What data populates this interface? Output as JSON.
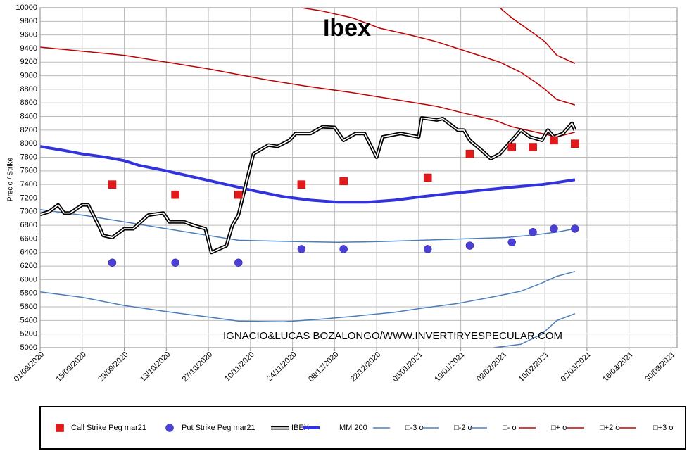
{
  "chart_data": {
    "type": "line",
    "title": "Ibex",
    "y_label": "Precio / Strike",
    "watermark": "IGNACIO&LUCAS BOZALONGO/WWW.INVERTIRYESPECULAR.COM",
    "grid": true,
    "legend": "bottom",
    "xlim": [
      "2020-09-01",
      "2021-04-01"
    ],
    "ylim": [
      5000,
      10000
    ],
    "xticks": [
      {
        "value": "2020-09-01",
        "label": "01/09/2020"
      },
      {
        "value": "2020-09-15",
        "label": "15/09/2020"
      },
      {
        "value": "2020-09-29",
        "label": "29/09/2020"
      },
      {
        "value": "2020-10-13",
        "label": "13/10/2020"
      },
      {
        "value": "2020-10-27",
        "label": "27/10/2020"
      },
      {
        "value": "2020-11-10",
        "label": "10/11/2020"
      },
      {
        "value": "2020-11-24",
        "label": "24/11/2020"
      },
      {
        "value": "2020-12-08",
        "label": "08/12/2020"
      },
      {
        "value": "2020-12-22",
        "label": "22/12/2020"
      },
      {
        "value": "2021-01-05",
        "label": "05/01/2021"
      },
      {
        "value": "2021-01-19",
        "label": "19/01/2021"
      },
      {
        "value": "2021-02-02",
        "label": "02/02/2021"
      },
      {
        "value": "2021-02-16",
        "label": "16/02/2021"
      },
      {
        "value": "2021-03-02",
        "label": "02/03/2021"
      },
      {
        "value": "2021-03-16",
        "label": "16/03/2021"
      },
      {
        "value": "2021-03-30",
        "label": "30/03/2021"
      }
    ],
    "yticks": [
      5000,
      5200,
      5400,
      5600,
      5800,
      6000,
      6200,
      6400,
      6600,
      6800,
      7000,
      7200,
      7400,
      7600,
      7800,
      8000,
      8200,
      8400,
      8600,
      8800,
      9000,
      9200,
      9400,
      9600,
      9800,
      10000
    ],
    "series": [
      {
        "name": "Call Strike Peg mar21",
        "kind": "scatter",
        "marker": "square",
        "color": "#e31a1c",
        "x": [
          "2020-09-25",
          "2020-10-16",
          "2020-11-06",
          "2020-11-27",
          "2020-12-11",
          "2021-01-08",
          "2021-01-22",
          "2021-02-05",
          "2021-02-12",
          "2021-02-19",
          "2021-02-26"
        ],
        "values": [
          7400,
          7250,
          7250,
          7400,
          7450,
          7500,
          7850,
          7950,
          7950,
          8050,
          8000
        ]
      },
      {
        "name": "Put Strike Peg mar21",
        "kind": "scatter",
        "marker": "circle",
        "color": "#4b3fd6",
        "x": [
          "2020-09-25",
          "2020-10-16",
          "2020-11-06",
          "2020-11-27",
          "2020-12-11",
          "2021-01-08",
          "2021-01-22",
          "2021-02-05",
          "2021-02-12",
          "2021-02-19",
          "2021-02-26"
        ],
        "values": [
          6250,
          6250,
          6250,
          6450,
          6450,
          6450,
          6500,
          6550,
          6700,
          6750,
          6750
        ]
      },
      {
        "name": "IBEX",
        "kind": "double-line",
        "color": "#000000",
        "x": [
          "2020-09-01",
          "2020-09-04",
          "2020-09-07",
          "2020-09-09",
          "2020-09-11",
          "2020-09-15",
          "2020-09-17",
          "2020-09-21",
          "2020-09-22",
          "2020-09-25",
          "2020-09-29",
          "2020-10-02",
          "2020-10-07",
          "2020-10-12",
          "2020-10-14",
          "2020-10-19",
          "2020-10-22",
          "2020-10-26",
          "2020-10-28",
          "2020-11-02",
          "2020-11-03",
          "2020-11-04",
          "2020-11-06",
          "2020-11-09",
          "2020-11-11",
          "2020-11-16",
          "2020-11-19",
          "2020-11-23",
          "2020-11-25",
          "2020-11-30",
          "2020-12-04",
          "2020-12-08",
          "2020-12-11",
          "2020-12-15",
          "2020-12-18",
          "2020-12-22",
          "2020-12-24",
          "2020-12-30",
          "2021-01-05",
          "2021-01-06",
          "2021-01-11",
          "2021-01-13",
          "2021-01-18",
          "2021-01-20",
          "2021-01-22",
          "2021-01-26",
          "2021-01-29",
          "2021-02-01",
          "2021-02-04",
          "2021-02-08",
          "2021-02-11",
          "2021-02-15",
          "2021-02-17",
          "2021-02-19",
          "2021-02-22",
          "2021-02-25",
          "2021-02-26"
        ],
        "values": [
          6960,
          7000,
          7100,
          6980,
          6980,
          7100,
          7100,
          6750,
          6650,
          6620,
          6750,
          6750,
          6950,
          6980,
          6850,
          6850,
          6800,
          6750,
          6400,
          6500,
          6650,
          6800,
          6950,
          7500,
          7850,
          7980,
          7960,
          8050,
          8150,
          8150,
          8250,
          8240,
          8050,
          8150,
          8150,
          7800,
          8100,
          8150,
          8100,
          8380,
          8350,
          8370,
          8200,
          8200,
          8050,
          7900,
          7780,
          7850,
          8000,
          8200,
          8100,
          8050,
          8200,
          8100,
          8150,
          8300,
          8200
        ]
      },
      {
        "name": "MM 200",
        "kind": "line",
        "color": "#3333dd",
        "width": 4,
        "x": [
          "2020-09-01",
          "2020-09-09",
          "2020-09-15",
          "2020-09-23",
          "2020-09-29",
          "2020-10-04",
          "2020-10-13",
          "2020-10-23",
          "2020-11-02",
          "2020-11-12",
          "2020-11-21",
          "2020-11-30",
          "2020-12-09",
          "2020-12-19",
          "2020-12-28",
          "2021-01-06",
          "2021-01-16",
          "2021-01-27",
          "2021-02-05",
          "2021-02-15",
          "2021-02-20",
          "2021-02-26"
        ],
        "values": [
          7960,
          7900,
          7850,
          7800,
          7750,
          7680,
          7600,
          7500,
          7400,
          7300,
          7220,
          7170,
          7140,
          7140,
          7170,
          7220,
          7270,
          7320,
          7360,
          7400,
          7430,
          7470
        ]
      },
      {
        "name": "□-3 σ",
        "kind": "line",
        "color": "#4a7ebb",
        "width": 1.5,
        "x": [
          "2021-01-30",
          "2021-02-08",
          "2021-02-15",
          "2021-02-20",
          "2021-02-26"
        ],
        "values": [
          5000,
          5050,
          5200,
          5400,
          5500
        ]
      },
      {
        "name": "□-2 σ",
        "kind": "line",
        "color": "#4a7ebb",
        "width": 1.5,
        "x": [
          "2020-09-01",
          "2020-09-15",
          "2020-09-29",
          "2020-10-13",
          "2020-10-27",
          "2020-11-06",
          "2020-11-21",
          "2020-12-04",
          "2020-12-14",
          "2020-12-28",
          "2021-01-06",
          "2021-01-18",
          "2021-01-29",
          "2021-02-08",
          "2021-02-15",
          "2021-02-20",
          "2021-02-26"
        ],
        "values": [
          5820,
          5740,
          5620,
          5530,
          5450,
          5390,
          5380,
          5420,
          5460,
          5520,
          5580,
          5650,
          5740,
          5830,
          5950,
          6050,
          6120
        ]
      },
      {
        "name": "□- σ",
        "kind": "line",
        "color": "#4a7ebb",
        "width": 1.5,
        "x": [
          "2020-09-01",
          "2020-09-15",
          "2020-09-29",
          "2020-10-13",
          "2020-10-27",
          "2020-11-06",
          "2020-11-25",
          "2020-12-09",
          "2020-12-23",
          "2021-01-06",
          "2021-01-20",
          "2021-02-03",
          "2021-02-13",
          "2021-02-20",
          "2021-02-26"
        ],
        "values": [
          7030,
          6950,
          6850,
          6750,
          6650,
          6580,
          6560,
          6550,
          6560,
          6580,
          6600,
          6620,
          6660,
          6700,
          6750
        ]
      },
      {
        "name": "□+ σ",
        "kind": "line",
        "color": "#c00000",
        "width": 1.5,
        "x": [
          "2020-09-01",
          "2020-09-29",
          "2020-10-27",
          "2020-11-14",
          "2020-11-28",
          "2020-12-14",
          "2020-12-28",
          "2021-01-11",
          "2021-01-20",
          "2021-01-30",
          "2021-02-05",
          "2021-02-15",
          "2021-02-20",
          "2021-02-26"
        ],
        "values": [
          9420,
          9300,
          9100,
          8950,
          8850,
          8750,
          8650,
          8550,
          8450,
          8350,
          8250,
          8150,
          8100,
          8170
        ]
      },
      {
        "name": "□+2 σ",
        "kind": "line",
        "color": "#c00000",
        "width": 1.5,
        "x": [
          "2020-11-27",
          "2020-12-04",
          "2020-12-14",
          "2020-12-23",
          "2021-01-02",
          "2021-01-11",
          "2021-01-18",
          "2021-01-25",
          "2021-02-01",
          "2021-02-08",
          "2021-02-13",
          "2021-02-16",
          "2021-02-20",
          "2021-02-26"
        ],
        "values": [
          10000,
          9950,
          9850,
          9700,
          9600,
          9500,
          9400,
          9300,
          9200,
          9050,
          8900,
          8800,
          8650,
          8570
        ]
      },
      {
        "name": "□+3 σ",
        "kind": "line",
        "color": "#c00000",
        "width": 1.5,
        "x": [
          "2021-02-01",
          "2021-02-05",
          "2021-02-13",
          "2021-02-16",
          "2021-02-20",
          "2021-02-26"
        ],
        "values": [
          10000,
          9850,
          9600,
          9500,
          9300,
          9180
        ]
      }
    ]
  }
}
